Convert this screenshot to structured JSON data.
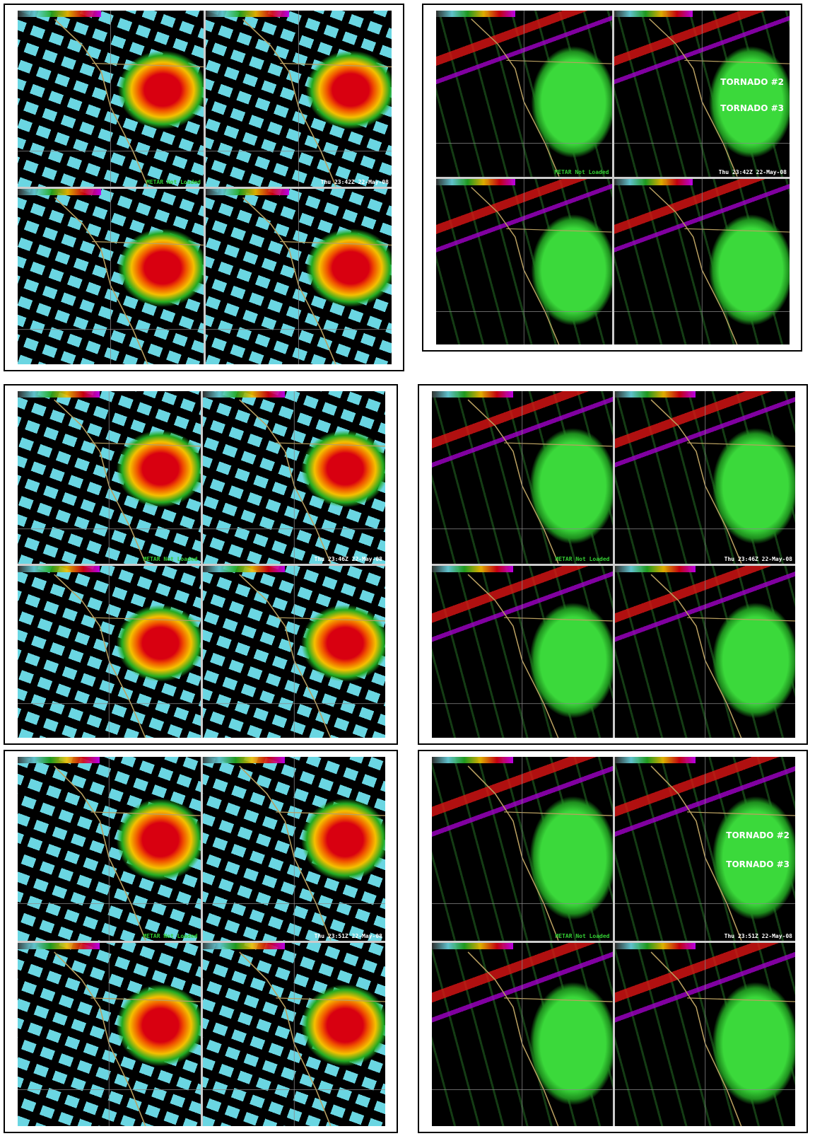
{
  "panels": [
    {
      "frames": [
        {
          "caption": "METAR Not Loaded"
        },
        {
          "caption": "Thu 23:42Z 22-May-08"
        },
        {},
        {}
      ]
    },
    {
      "frames": [
        {
          "caption": "METAR Not Loaded"
        },
        {
          "caption": "Thu 23:42Z 22-May-08",
          "annotations": [
            "TORNADO #2",
            "TORNADO #3"
          ]
        },
        {},
        {}
      ]
    },
    {
      "frames": [
        {
          "caption": "METAR Not Loaded"
        },
        {
          "caption": "Thu 23:46Z 22-May-08"
        },
        {},
        {}
      ]
    },
    {
      "frames": [
        {
          "caption": "METAR Not Loaded"
        },
        {
          "caption": "Thu 23:46Z 22-May-08"
        },
        {},
        {}
      ]
    },
    {
      "frames": [
        {
          "caption": "METAR Not Loaded"
        },
        {
          "caption": "Thu 23:51Z 22-May-08"
        },
        {},
        {}
      ]
    },
    {
      "frames": [
        {
          "caption": "METAR Not Loaded"
        },
        {
          "caption": "Thu 23:51Z 22-May-08",
          "annotations": [
            "TORNADO #2",
            "TORNADO #3"
          ]
        },
        {},
        {}
      ]
    }
  ]
}
